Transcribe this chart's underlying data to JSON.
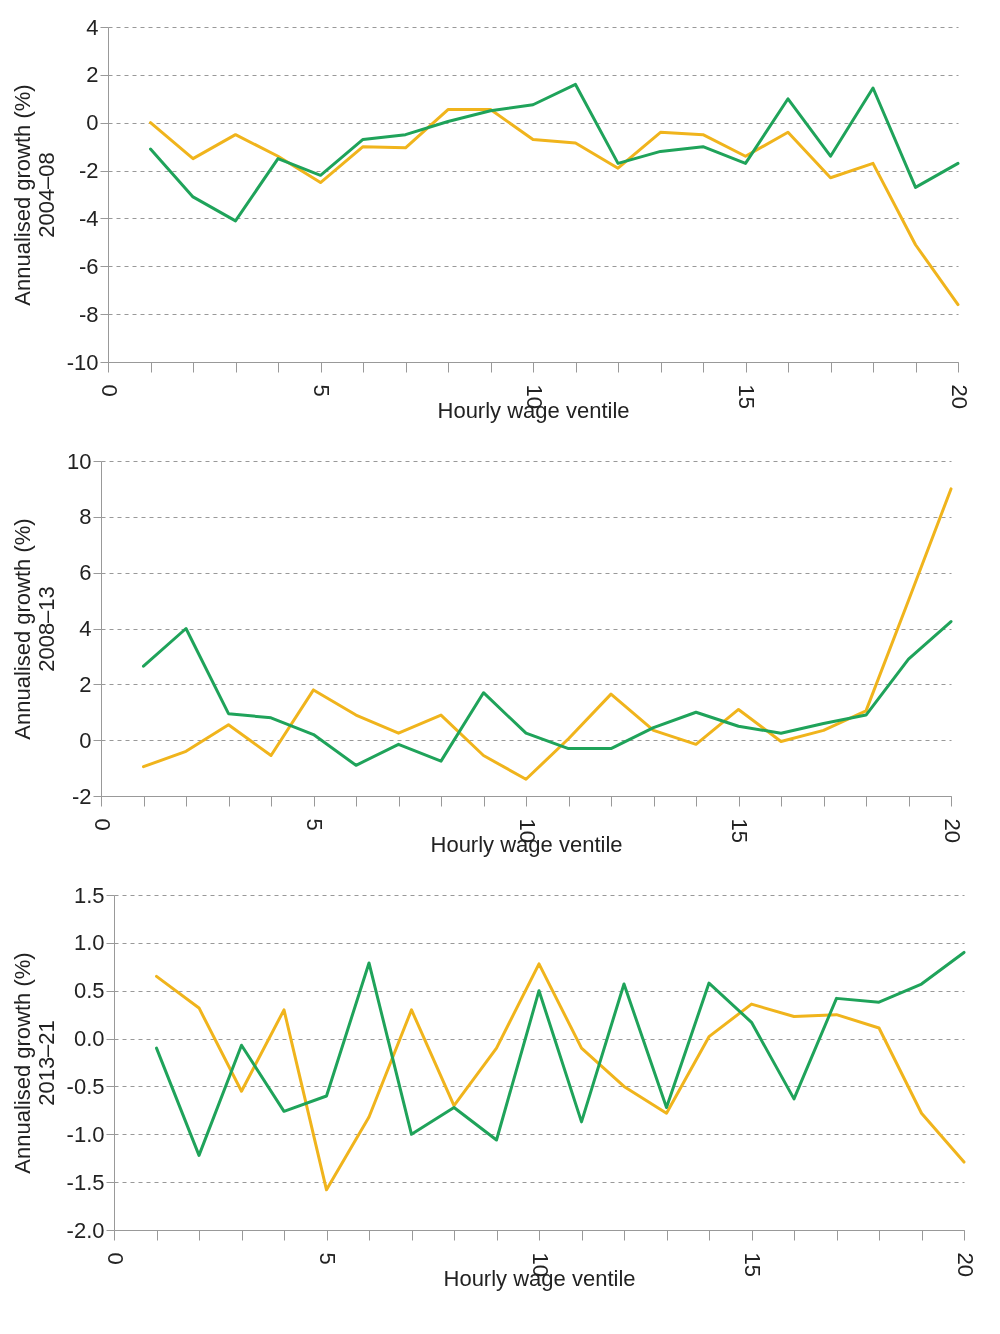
{
  "chart_data": [
    {
      "type": "line",
      "xlabel": "Hourly wage ventile",
      "ylabel": "Annualised growth (%)\n2004–08",
      "x": [
        1,
        2,
        3,
        4,
        5,
        6,
        7,
        8,
        9,
        10,
        11,
        12,
        13,
        14,
        15,
        16,
        17,
        18,
        19,
        20
      ],
      "xlim": [
        0,
        20
      ],
      "xticks": [
        0,
        {
          "value": 1,
          "label": null
        },
        {
          "value": 2,
          "label": null
        },
        {
          "value": 3,
          "label": null
        },
        {
          "value": 4,
          "label": null
        },
        5,
        {
          "value": 6,
          "label": null
        },
        {
          "value": 7,
          "label": null
        },
        {
          "value": 8,
          "label": null
        },
        {
          "value": 9,
          "label": null
        },
        10,
        {
          "value": 11,
          "label": null
        },
        {
          "value": 12,
          "label": null
        },
        {
          "value": 13,
          "label": null
        },
        {
          "value": 14,
          "label": null
        },
        15,
        {
          "value": 16,
          "label": null
        },
        {
          "value": 17,
          "label": null
        },
        {
          "value": 18,
          "label": null
        },
        {
          "value": 19,
          "label": null
        },
        20
      ],
      "ylim": [
        -10,
        4
      ],
      "yticks": [
        -10,
        -8,
        -6,
        -4,
        -2,
        0,
        2,
        4
      ],
      "grid": "y",
      "legend": false,
      "series": [
        {
          "color": "#f0b41c",
          "values": [
            0,
            -1.5,
            -0.5,
            -1.4,
            -2.5,
            -1.0,
            -1.05,
            0.55,
            0.55,
            -0.7,
            -0.85,
            -1.9,
            -0.4,
            -0.5,
            -1.4,
            -0.4,
            -2.3,
            -1.7,
            -5.1,
            -7.6
          ]
        },
        {
          "color": "#1fa35a",
          "values": [
            -1.1,
            -3.1,
            -4.1,
            -1.5,
            -2.2,
            -0.7,
            -0.5,
            0.05,
            0.5,
            0.75,
            1.6,
            -1.7,
            -1.2,
            -1.0,
            -1.7,
            1.0,
            -1.4,
            1.45,
            -2.7,
            -1.7
          ]
        }
      ]
    },
    {
      "type": "line",
      "xlabel": "Hourly wage ventile",
      "ylabel": "Annualised growth (%)\n2008–13",
      "x": [
        1,
        2,
        3,
        4,
        5,
        6,
        7,
        8,
        9,
        10,
        11,
        12,
        13,
        14,
        15,
        16,
        17,
        18,
        19,
        20
      ],
      "xlim": [
        0,
        20
      ],
      "xticks": [
        0,
        {
          "value": 1,
          "label": null
        },
        {
          "value": 2,
          "label": null
        },
        {
          "value": 3,
          "label": null
        },
        {
          "value": 4,
          "label": null
        },
        5,
        {
          "value": 6,
          "label": null
        },
        {
          "value": 7,
          "label": null
        },
        {
          "value": 8,
          "label": null
        },
        {
          "value": 9,
          "label": null
        },
        10,
        {
          "value": 11,
          "label": null
        },
        {
          "value": 12,
          "label": null
        },
        {
          "value": 13,
          "label": null
        },
        {
          "value": 14,
          "label": null
        },
        15,
        {
          "value": 16,
          "label": null
        },
        {
          "value": 17,
          "label": null
        },
        {
          "value": 18,
          "label": null
        },
        {
          "value": 19,
          "label": null
        },
        20
      ],
      "ylim": [
        -2,
        10
      ],
      "yticks": [
        -2,
        0,
        2,
        4,
        6,
        8,
        10
      ],
      "grid": "y",
      "legend": false,
      "series": [
        {
          "color": "#f0b41c",
          "values": [
            -0.95,
            -0.4,
            0.55,
            -0.55,
            1.8,
            0.9,
            0.25,
            0.9,
            -0.55,
            -1.4,
            0.05,
            1.65,
            0.35,
            -0.15,
            1.1,
            -0.05,
            0.35,
            1.05,
            5.0,
            9.0
          ]
        },
        {
          "color": "#1fa35a",
          "values": [
            2.65,
            4.0,
            0.95,
            0.8,
            0.2,
            -0.9,
            -0.15,
            -0.75,
            1.7,
            0.25,
            -0.3,
            -0.3,
            0.45,
            1.0,
            0.5,
            0.25,
            0.6,
            0.9,
            2.9,
            4.25
          ]
        }
      ]
    },
    {
      "type": "line",
      "xlabel": "Hourly wage ventile",
      "ylabel": "Annualised growth (%)\n2013–21",
      "x": [
        1,
        2,
        3,
        4,
        5,
        6,
        7,
        8,
        9,
        10,
        11,
        12,
        13,
        14,
        15,
        16,
        17,
        18,
        19,
        20
      ],
      "xlim": [
        0,
        20
      ],
      "xticks": [
        0,
        {
          "value": 1,
          "label": null
        },
        {
          "value": 2,
          "label": null
        },
        {
          "value": 3,
          "label": null
        },
        {
          "value": 4,
          "label": null
        },
        5,
        {
          "value": 6,
          "label": null
        },
        {
          "value": 7,
          "label": null
        },
        {
          "value": 8,
          "label": null
        },
        {
          "value": 9,
          "label": null
        },
        10,
        {
          "value": 11,
          "label": null
        },
        {
          "value": 12,
          "label": null
        },
        {
          "value": 13,
          "label": null
        },
        {
          "value": 14,
          "label": null
        },
        15,
        {
          "value": 16,
          "label": null
        },
        {
          "value": 17,
          "label": null
        },
        {
          "value": 18,
          "label": null
        },
        {
          "value": 19,
          "label": null
        },
        20
      ],
      "ylim": [
        -2.0,
        1.5
      ],
      "yticks": [
        {
          "value": -2,
          "label": "-2.0"
        },
        -1.5,
        {
          "value": -1,
          "label": "-1.0"
        },
        -0.5,
        {
          "value": 0,
          "label": "0.0"
        },
        0.5,
        {
          "value": 1,
          "label": "1.0"
        },
        1.5
      ],
      "grid": "y",
      "legend": false,
      "series": [
        {
          "color": "#f0b41c",
          "values": [
            0.65,
            0.32,
            -0.55,
            0.3,
            -1.58,
            -0.82,
            0.3,
            -0.7,
            -0.1,
            0.78,
            -0.1,
            -0.5,
            -0.78,
            0.02,
            0.36,
            0.23,
            0.25,
            0.11,
            -0.78,
            -1.29
          ]
        },
        {
          "color": "#1fa35a",
          "values": [
            -0.1,
            -1.22,
            -0.07,
            -0.76,
            -0.6,
            0.79,
            -1.0,
            -0.72,
            -1.06,
            0.5,
            -0.87,
            0.57,
            -0.72,
            0.58,
            0.17,
            -0.63,
            0.42,
            0.38,
            0.57,
            0.9
          ]
        }
      ]
    }
  ]
}
